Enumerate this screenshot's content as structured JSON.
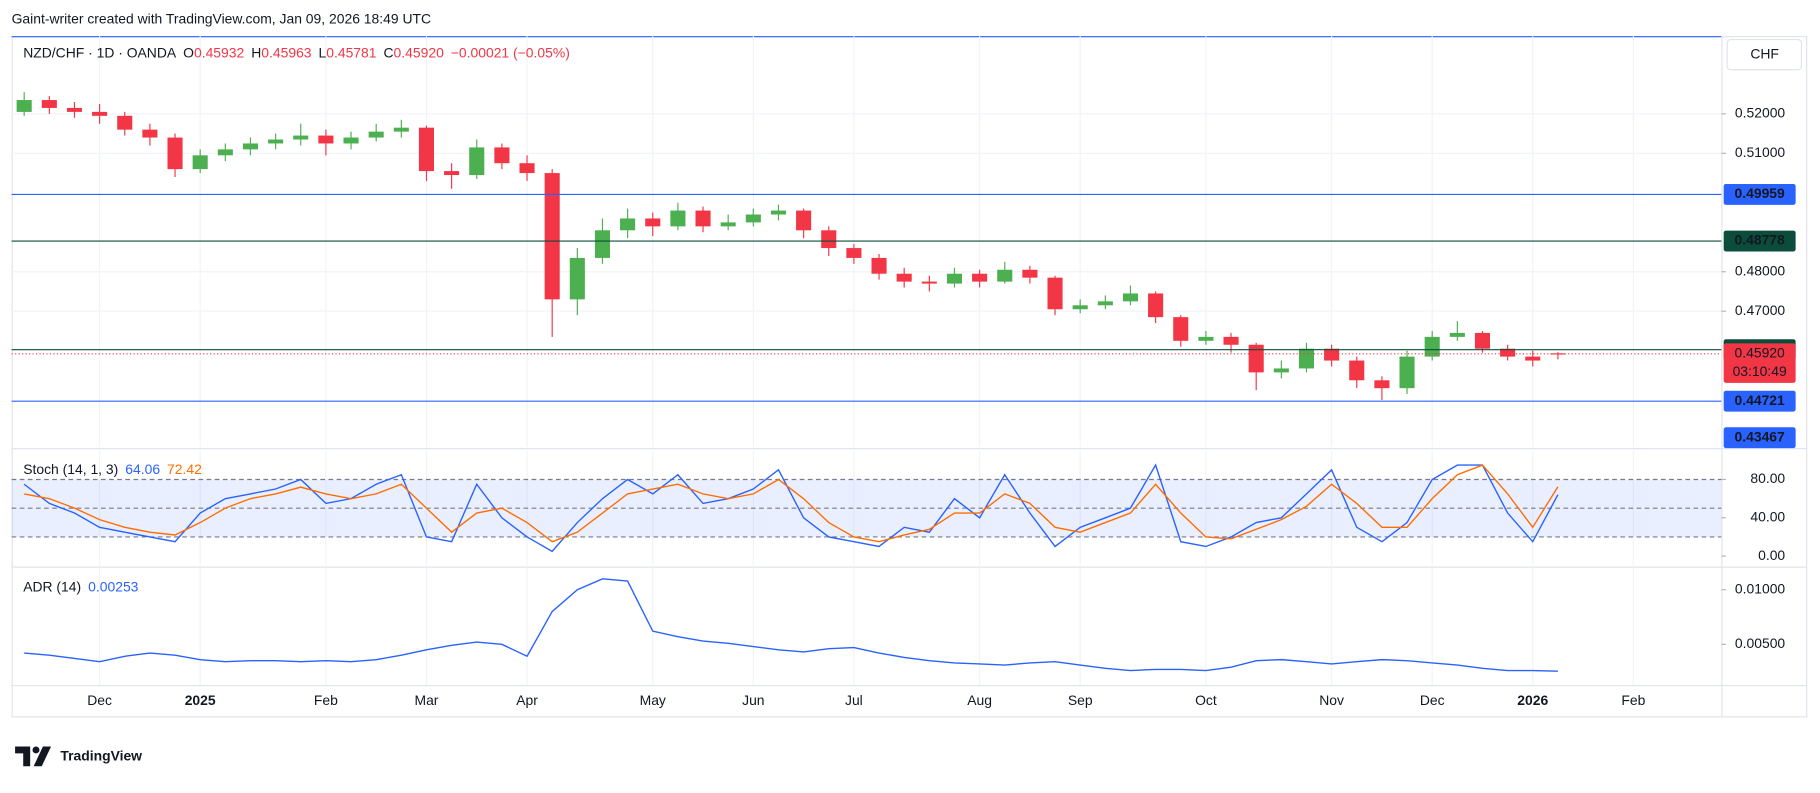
{
  "attribution": "Gaint-writer created with TradingView.com, Jan 09, 2026 18:49 UTC",
  "brand": "TradingView",
  "chart_data": [
    {
      "type": "candlestick",
      "title": "NZD/CHF · 1D · OANDA",
      "currency": "CHF",
      "ohlc_legend": [
        {
          "key": "O",
          "value": "0.45932"
        },
        {
          "key": "H",
          "value": "0.45963"
        },
        {
          "key": "L",
          "value": "0.45781"
        },
        {
          "key": "C",
          "value": "0.45920"
        }
      ],
      "change": "−0.00021 (−0.05%)",
      "up_color": "#4caf50",
      "down_color": "#f23645",
      "categories": [
        null,
        null,
        null,
        "Dec",
        null,
        null,
        null,
        "2025",
        null,
        null,
        null,
        null,
        "Feb",
        null,
        null,
        null,
        "Mar",
        null,
        null,
        null,
        "Apr",
        null,
        null,
        null,
        null,
        "May",
        null,
        null,
        null,
        "Jun",
        null,
        null,
        null,
        "Jul",
        null,
        null,
        null,
        null,
        "Aug",
        null,
        null,
        null,
        "Sep",
        null,
        null,
        null,
        null,
        "Oct",
        null,
        null,
        null,
        null,
        "Nov",
        null,
        null,
        null,
        "Dec",
        null,
        null,
        null,
        "2026",
        null,
        null,
        null,
        "Feb",
        null,
        null,
        null
      ],
      "open": [
        0.5205,
        0.5235,
        0.5215,
        0.5205,
        0.5195,
        0.516,
        0.514,
        0.506,
        0.5095,
        0.511,
        0.5125,
        0.5135,
        0.5145,
        0.5125,
        0.514,
        0.5155,
        0.5165,
        0.5055,
        0.5045,
        0.5115,
        0.5075,
        0.505,
        0.473,
        0.4835,
        0.4905,
        0.4935,
        0.4915,
        0.4955,
        0.4915,
        0.4925,
        0.4945,
        0.4955,
        0.4905,
        0.486,
        0.4835,
        0.4795,
        0.4775,
        0.477,
        0.4795,
        0.4775,
        0.4805,
        0.4785,
        0.4705,
        0.4715,
        0.4725,
        0.4745,
        0.4685,
        0.4625,
        0.4635,
        0.4615,
        0.4545,
        0.4555,
        0.4605,
        0.4575,
        0.4525,
        0.4505,
        0.4585,
        0.4635,
        0.4645,
        0.4605,
        0.4585,
        0.45932,
        null,
        null,
        null,
        null,
        null,
        null
      ],
      "high": [
        0.5255,
        0.5245,
        0.523,
        0.5225,
        0.5205,
        0.5175,
        0.515,
        0.511,
        0.5125,
        0.514,
        0.515,
        0.5175,
        0.516,
        0.5155,
        0.5175,
        0.5185,
        0.517,
        0.5075,
        0.5135,
        0.5125,
        0.5095,
        0.506,
        0.486,
        0.4935,
        0.496,
        0.495,
        0.4975,
        0.4965,
        0.4945,
        0.496,
        0.497,
        0.496,
        0.4915,
        0.487,
        0.4845,
        0.481,
        0.479,
        0.481,
        0.4805,
        0.4825,
        0.4815,
        0.479,
        0.473,
        0.474,
        0.4765,
        0.475,
        0.469,
        0.465,
        0.4645,
        0.462,
        0.4575,
        0.462,
        0.4615,
        0.4585,
        0.4535,
        0.46,
        0.465,
        0.4675,
        0.465,
        0.4615,
        0.46,
        0.45963,
        null,
        null,
        null,
        null,
        null,
        null
      ],
      "low": [
        0.5195,
        0.52,
        0.519,
        0.5175,
        0.5145,
        0.512,
        0.504,
        0.505,
        0.508,
        0.5095,
        0.511,
        0.512,
        0.5095,
        0.511,
        0.513,
        0.514,
        0.503,
        0.501,
        0.5035,
        0.506,
        0.503,
        0.4635,
        0.469,
        0.482,
        0.4885,
        0.489,
        0.4905,
        0.49,
        0.4905,
        0.4915,
        0.493,
        0.4885,
        0.484,
        0.482,
        0.478,
        0.476,
        0.475,
        0.476,
        0.476,
        0.477,
        0.477,
        0.469,
        0.4695,
        0.4705,
        0.4715,
        0.467,
        0.461,
        0.4615,
        0.4595,
        0.45,
        0.453,
        0.4545,
        0.456,
        0.4505,
        0.4475,
        0.449,
        0.4575,
        0.4625,
        0.4595,
        0.4575,
        0.456,
        0.45781,
        null,
        null,
        null,
        null,
        null,
        null
      ],
      "close": [
        0.5235,
        0.5215,
        0.5205,
        0.5195,
        0.516,
        0.514,
        0.506,
        0.5095,
        0.511,
        0.5125,
        0.5135,
        0.5145,
        0.5125,
        0.514,
        0.5155,
        0.5165,
        0.5055,
        0.5045,
        0.5115,
        0.5075,
        0.505,
        0.473,
        0.4835,
        0.4905,
        0.4935,
        0.4915,
        0.4955,
        0.4915,
        0.4925,
        0.4945,
        0.4955,
        0.4905,
        0.486,
        0.4835,
        0.4795,
        0.4775,
        0.477,
        0.4795,
        0.4775,
        0.4805,
        0.4785,
        0.4705,
        0.4715,
        0.4725,
        0.4745,
        0.4685,
        0.4625,
        0.4635,
        0.4615,
        0.4545,
        0.4555,
        0.4605,
        0.4575,
        0.4525,
        0.4505,
        0.4585,
        0.4635,
        0.4645,
        0.4605,
        0.4585,
        0.4575,
        0.4592,
        null,
        null,
        null,
        null,
        null,
        null
      ],
      "ylim": [
        0.4356,
        0.5397
      ],
      "yticks": [
        {
          "value": 0.52,
          "label": "0.52000"
        },
        {
          "value": 0.51,
          "label": "0.51000"
        },
        {
          "value": 0.48,
          "label": "0.48000"
        },
        {
          "value": 0.47,
          "label": "0.47000"
        }
      ],
      "grid": true,
      "levels": [
        {
          "value": 0.49959,
          "color": "#2962ff"
        },
        {
          "value": 0.48778,
          "color": "#0b4d3a"
        },
        {
          "value": 0.46025,
          "color": "#0b4d3a"
        },
        {
          "value": 0.44721,
          "color": "#2962ff"
        },
        {
          "value": 0.43467,
          "color": "#2962ff"
        }
      ],
      "last_price": {
        "value": 0.4592,
        "label": "0.45920",
        "countdown": "03:10:49",
        "color": "#f23645"
      }
    },
    {
      "type": "line",
      "title": "Stoch (14, 1, 3)",
      "series": [
        {
          "name": "%K",
          "color": "#2962ff",
          "values": [
            75,
            55,
            45,
            30,
            25,
            20,
            15,
            45,
            60,
            65,
            70,
            80,
            55,
            60,
            75,
            85,
            20,
            15,
            75,
            40,
            20,
            5,
            35,
            60,
            80,
            65,
            85,
            55,
            60,
            70,
            90,
            40,
            20,
            15,
            10,
            30,
            25,
            60,
            40,
            85,
            45,
            10,
            30,
            40,
            50,
            95,
            15,
            10,
            20,
            35,
            40,
            65,
            90,
            30,
            15,
            35,
            80,
            95,
            95,
            45,
            15,
            64.06,
            null,
            null,
            null,
            null,
            null,
            null
          ]
        },
        {
          "name": "%D",
          "color": "#ff6d00",
          "values": [
            65,
            60,
            50,
            38,
            30,
            25,
            22,
            35,
            50,
            60,
            65,
            72,
            65,
            60,
            65,
            75,
            50,
            25,
            45,
            50,
            35,
            15,
            25,
            45,
            65,
            70,
            75,
            65,
            60,
            65,
            80,
            60,
            35,
            20,
            15,
            22,
            28,
            45,
            45,
            65,
            55,
            30,
            25,
            35,
            45,
            75,
            45,
            20,
            18,
            28,
            38,
            52,
            75,
            55,
            30,
            30,
            60,
            85,
            95,
            65,
            30,
            72.42,
            null,
            null,
            null,
            null,
            null,
            null
          ]
        }
      ],
      "ylim": [
        -9.7,
        110.3
      ],
      "yticks": [
        {
          "value": 80,
          "label": "80.00"
        },
        {
          "value": 40,
          "label": "40.00"
        },
        {
          "value": 0,
          "label": "0.00"
        }
      ],
      "band": [
        20,
        80
      ],
      "hlines": [
        80,
        50,
        20
      ]
    },
    {
      "type": "line",
      "title": "ADR (14)",
      "series": [
        {
          "name": "ADR",
          "color": "#2962ff",
          "values": [
            0.0042,
            0.004,
            0.0037,
            0.0034,
            0.0039,
            0.0042,
            0.004,
            0.0036,
            0.0034,
            0.0035,
            0.0035,
            0.0034,
            0.0035,
            0.0034,
            0.0036,
            0.004,
            0.0045,
            0.0049,
            0.0052,
            0.005,
            0.0039,
            0.008,
            0.01,
            0.011,
            0.0108,
            0.0062,
            0.0057,
            0.0053,
            0.0051,
            0.0048,
            0.0045,
            0.0043,
            0.0046,
            0.0047,
            0.0042,
            0.0038,
            0.0035,
            0.0033,
            0.0032,
            0.0031,
            0.0033,
            0.0034,
            0.0031,
            0.0028,
            0.0026,
            0.0027,
            0.0027,
            0.0026,
            0.0029,
            0.0035,
            0.0036,
            0.0034,
            0.0032,
            0.0034,
            0.0036,
            0.0035,
            0.0033,
            0.0031,
            0.0028,
            0.0026,
            0.0026,
            0.00253,
            null,
            null,
            null,
            null,
            null,
            null
          ]
        }
      ],
      "ylim": [
        0.001277,
        0.01202
      ],
      "yticks": [
        {
          "value": 0.01,
          "label": "0.01000"
        },
        {
          "value": 0.005,
          "label": "0.00500"
        }
      ]
    }
  ]
}
